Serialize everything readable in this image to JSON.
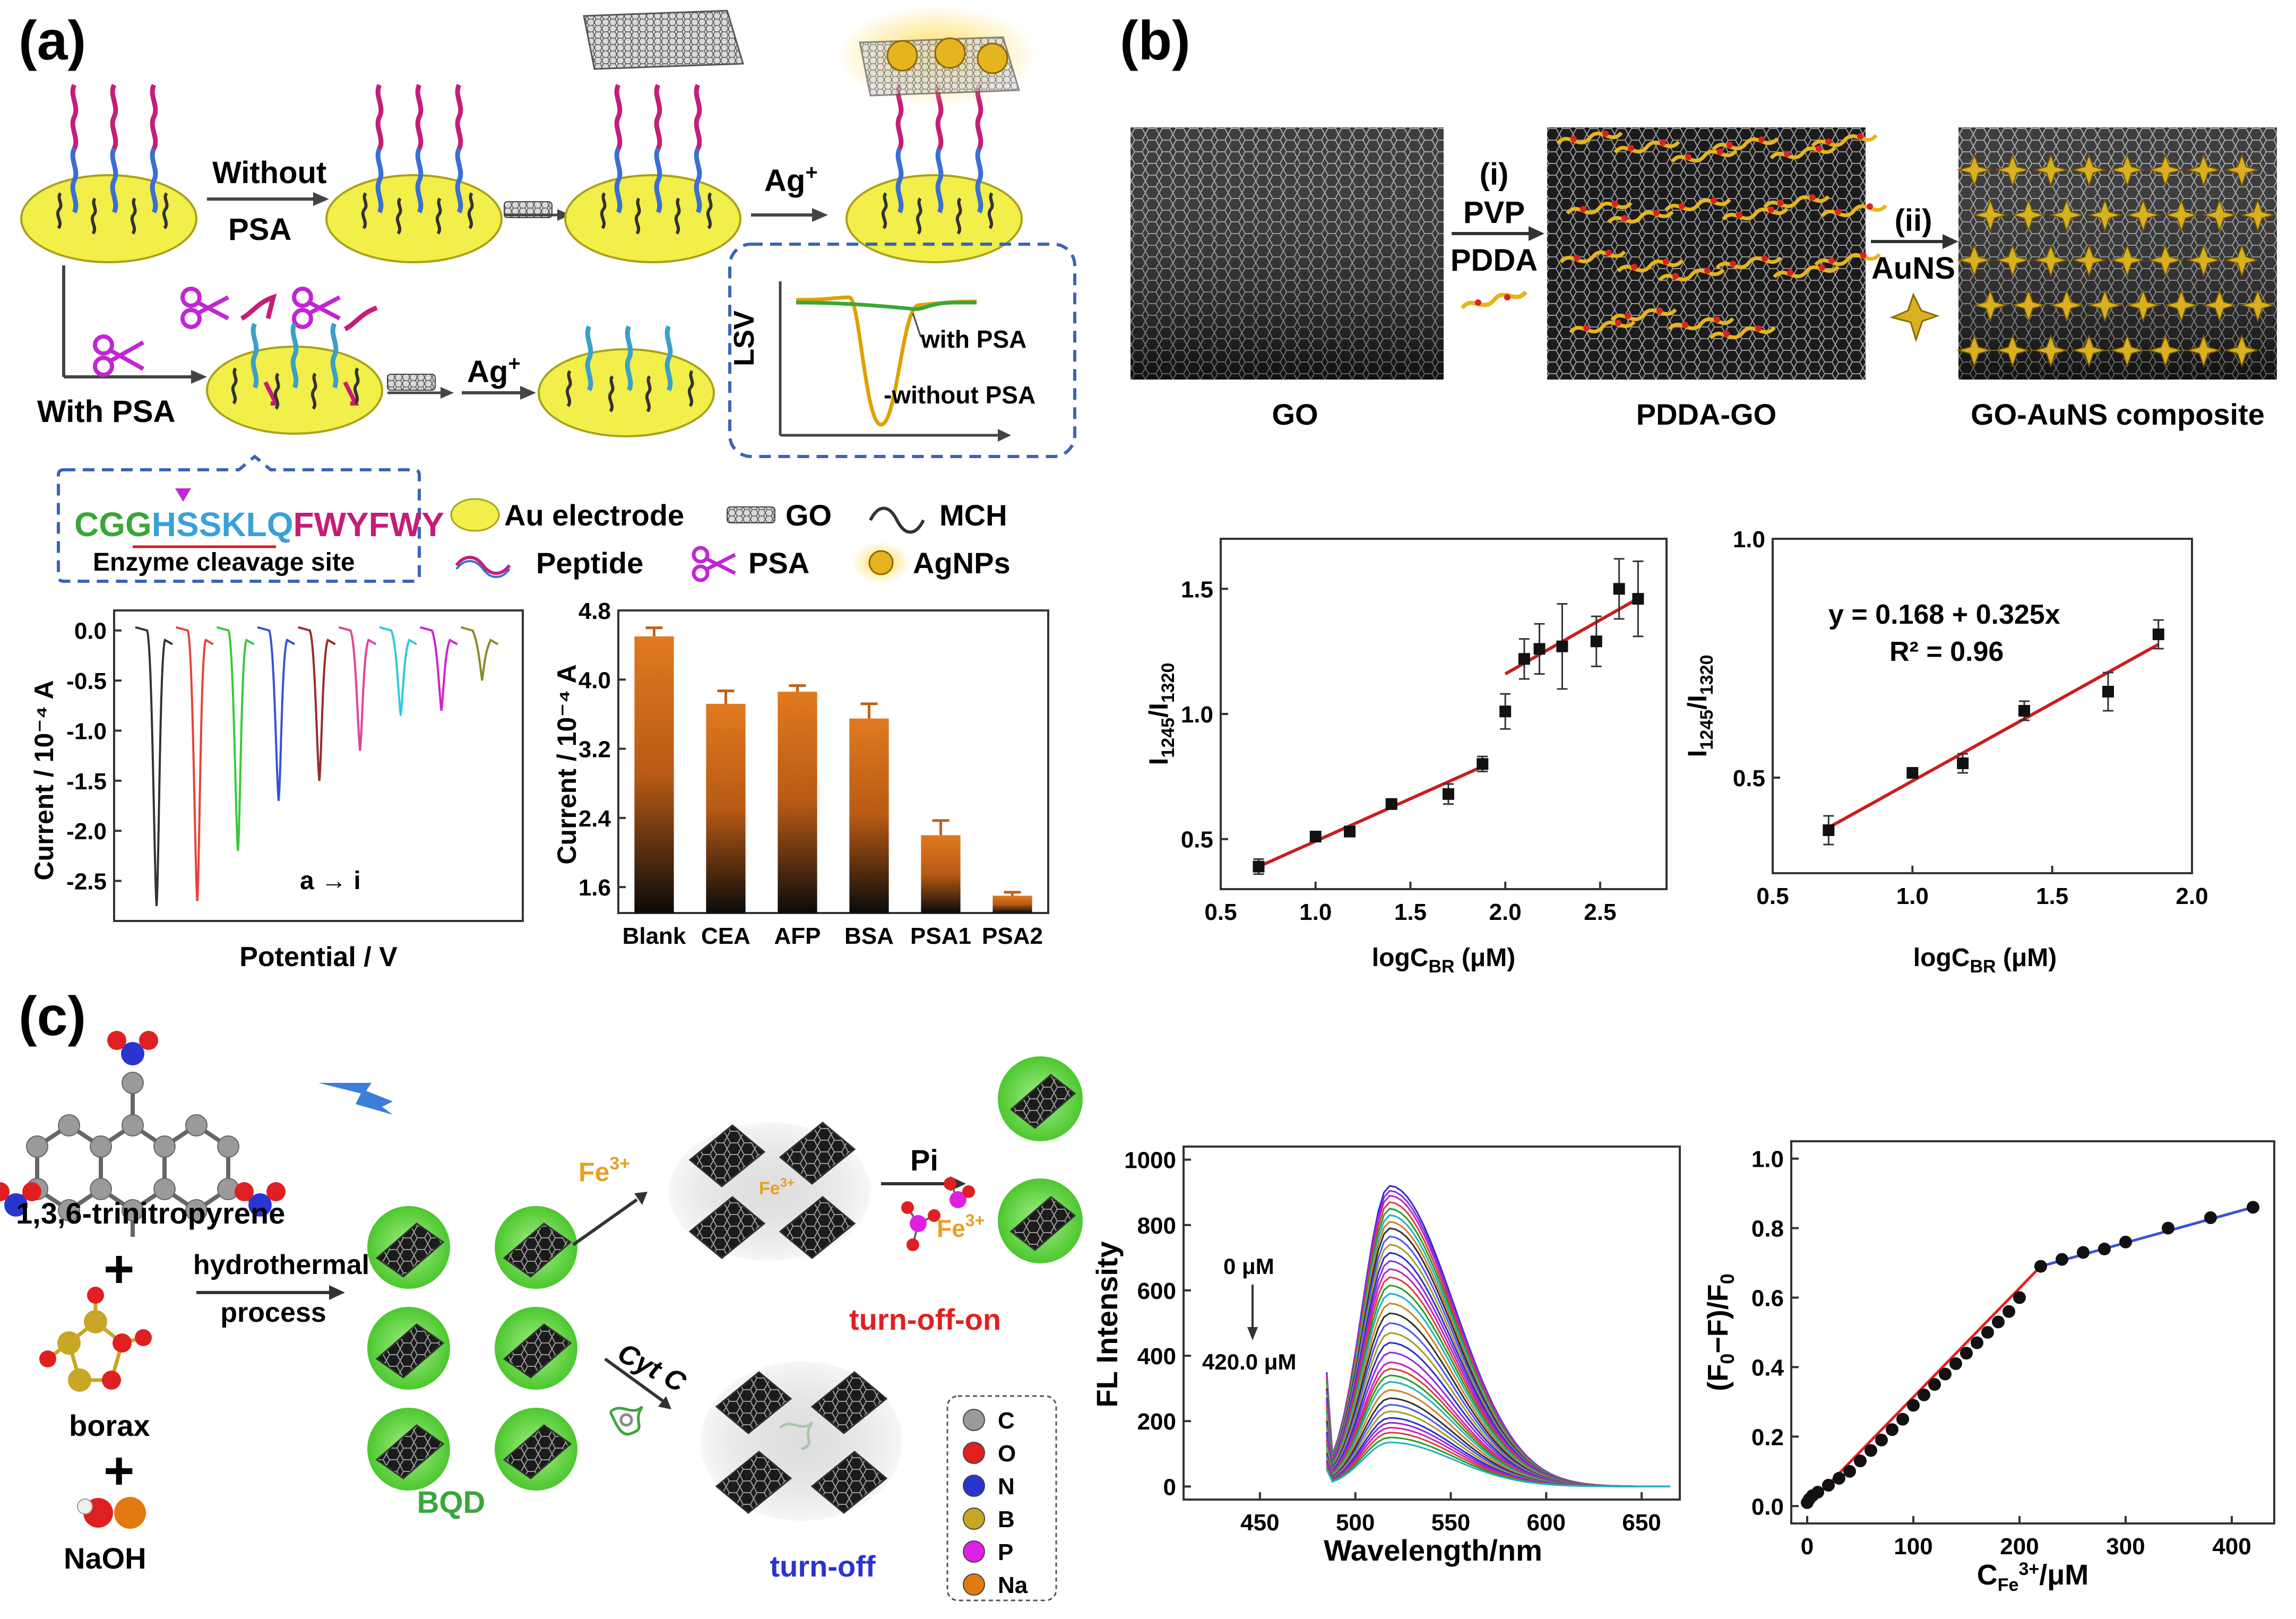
{
  "panel_a": {
    "label": "(a)",
    "without_psa": [
      "Without",
      "PSA"
    ],
    "with_psa": "With PSA",
    "ag_plus": "Ag",
    "ag_sup": "+",
    "lsv": {
      "ylabel": "LSV",
      "with": "with PSA",
      "without": "without PSA"
    },
    "sequence": {
      "part1": "CGG",
      "part2": "HSSKLQ",
      "part3": "FWYFWY",
      "caption": "Enzyme cleavage site"
    },
    "legend": {
      "au": "Au electrode",
      "go": "GO",
      "mch": "MCH",
      "peptide": "Peptide",
      "psa": "PSA",
      "agnps": "AgNPs"
    },
    "colors": {
      "gold": "#f2ee4a",
      "cleave": "#c026d3",
      "seq_green": "#3aa63a",
      "seq_blue": "#3ba0d8",
      "seq_magenta": "#c41e78",
      "dash": "#3a64b8"
    }
  },
  "panel_b": {
    "label": "(b)",
    "step_i": "(i)",
    "pvp": "PVP",
    "pdda": "PDDA",
    "step_ii": "(ii)",
    "auns": "AuNS",
    "cap_go": "GO",
    "cap_pdda": "PDDA-GO",
    "cap_comp": "GO-AuNS composite",
    "equation": "y = 0.168 + 0.325x",
    "r2": "R² = 0.96"
  },
  "panel_c": {
    "label": "(c)",
    "trinitropyrene": "1,3,6-trinitropyrene",
    "borax": "borax",
    "naoh": "NaOH",
    "plus": "+",
    "hydro1": "hydrothermal",
    "hydro2": "process",
    "bqd": "BQD",
    "fe": "Fe",
    "fe_sup": "3+",
    "pi": "Pi",
    "cytc": "Cyt C",
    "turn_off_on": "turn-off-on",
    "turn_off": "turn-off",
    "atoms": [
      {
        "sym": "C",
        "color": "#9a9a9a"
      },
      {
        "sym": "O",
        "color": "#e02020"
      },
      {
        "sym": "N",
        "color": "#2a34d0"
      },
      {
        "sym": "B",
        "color": "#c8a626"
      },
      {
        "sym": "P",
        "color": "#e020e0"
      },
      {
        "sym": "Na",
        "color": "#e07a10"
      }
    ],
    "fl_top": "0 μM",
    "fl_bottom": "420.0 μM"
  },
  "chart_data": [
    {
      "id": "cv_curves",
      "type": "line",
      "title": "",
      "xlabel": "Potential / V",
      "ylabel": "Current / 10⁻⁴ A",
      "yticks": [
        "0.0",
        "-0.5",
        "-1.0",
        "-1.5",
        "-2.0",
        "-2.5"
      ],
      "ylim": [
        -2.9,
        0.2
      ],
      "annotation": "a → i",
      "series": [
        {
          "name": "a",
          "color": "#333333",
          "peak": -2.75
        },
        {
          "name": "b",
          "color": "#e8413b",
          "peak": -2.7
        },
        {
          "name": "c",
          "color": "#39c83a",
          "peak": -2.2
        },
        {
          "name": "d",
          "color": "#3a4fd8",
          "peak": -1.7
        },
        {
          "name": "e",
          "color": "#9a2a2a",
          "peak": -1.5
        },
        {
          "name": "f",
          "color": "#e0439a",
          "peak": -1.2
        },
        {
          "name": "g",
          "color": "#32c8e0",
          "peak": -0.85
        },
        {
          "name": "h",
          "color": "#d020d0",
          "peak": -0.8
        },
        {
          "name": "i",
          "color": "#8a8a28",
          "peak": -0.5
        }
      ]
    },
    {
      "id": "selectivity_bar",
      "type": "bar",
      "title": "",
      "xlabel": "",
      "ylabel": "Current / 10⁻⁴ A",
      "categories": [
        "Blank",
        "CEA",
        "AFP",
        "BSA",
        "PSA1",
        "PSA2"
      ],
      "values": [
        4.5,
        3.72,
        3.86,
        3.55,
        2.2,
        1.5
      ],
      "errors": [
        0.1,
        0.15,
        0.07,
        0.17,
        0.17,
        0.04
      ],
      "yticks": [
        1.6,
        2.4,
        3.2,
        4.0,
        4.8
      ],
      "ylim": [
        1.3,
        4.8
      ]
    },
    {
      "id": "raman_full",
      "type": "scatter",
      "xlabel": "logC_BR (μM)",
      "ylabel": "I1245/I1320",
      "xticks": [
        0.5,
        1.0,
        1.5,
        2.0,
        2.5
      ],
      "yticks": [
        0.5,
        1.0,
        1.5
      ],
      "xlim": [
        0.5,
        2.85
      ],
      "ylim": [
        0.3,
        1.7
      ],
      "x": [
        0.7,
        1.0,
        1.18,
        1.4,
        1.7,
        1.88,
        2.0,
        2.1,
        2.18,
        2.3,
        2.48,
        2.6,
        2.7
      ],
      "y": [
        0.39,
        0.51,
        0.53,
        0.64,
        0.68,
        0.8,
        1.01,
        1.22,
        1.26,
        1.27,
        1.29,
        1.5,
        1.46
      ],
      "err": [
        0.03,
        0.01,
        0.02,
        0.02,
        0.04,
        0.03,
        0.07,
        0.08,
        0.1,
        0.17,
        0.1,
        0.12,
        0.15
      ],
      "fit_segments": [
        [
          0.7,
          0.39,
          1.88,
          0.79
        ],
        [
          2.0,
          1.16,
          2.72,
          1.47
        ]
      ]
    },
    {
      "id": "raman_linear",
      "type": "scatter",
      "xlabel": "logC_BR (μM)",
      "ylabel": "I1245/I1320",
      "xticks": [
        0.5,
        1.0,
        1.5,
        2.0
      ],
      "yticks": [
        0.5,
        1.0
      ],
      "xlim": [
        0.5,
        2.0
      ],
      "ylim": [
        0.3,
        1.0
      ],
      "x": [
        0.7,
        1.0,
        1.18,
        1.4,
        1.7,
        1.88
      ],
      "y": [
        0.39,
        0.51,
        0.53,
        0.64,
        0.68,
        0.8
      ],
      "err": [
        0.03,
        0.01,
        0.02,
        0.02,
        0.04,
        0.03
      ],
      "fit": {
        "intercept": 0.168,
        "slope": 0.325
      }
    },
    {
      "id": "fl_spectra",
      "type": "line",
      "xlabel": "Wavelength/nm",
      "ylabel": "FL Intensity",
      "xticks": [
        450,
        500,
        550,
        600,
        650
      ],
      "yticks": [
        0,
        200,
        400,
        600,
        800,
        1000
      ],
      "xlim": [
        410,
        670
      ],
      "ylim": [
        -40,
        1040
      ],
      "start_nm": 485,
      "peak_nm": 518,
      "peaks": [
        920,
        905,
        890,
        870,
        850,
        830,
        810,
        790,
        765,
        740,
        715,
        690,
        665,
        640,
        615,
        590,
        560,
        530,
        500,
        470,
        440,
        410,
        380,
        360,
        340,
        320,
        295,
        270,
        250,
        230,
        210,
        195,
        180,
        165,
        150,
        135
      ],
      "palette": [
        "#2a2ad0",
        "#8a2be2",
        "#c020c0",
        "#e03a3a",
        "#20a020",
        "#20b0c0",
        "#d08020",
        "#303030",
        "#5050ff",
        "#a0a020"
      ]
    },
    {
      "id": "fe_quench",
      "type": "scatter",
      "xlabel": "C_Fe3+/μM",
      "ylabel": "(F0−F)/F0",
      "xticks": [
        0,
        100,
        200,
        300,
        400
      ],
      "yticks": [
        0.0,
        0.2,
        0.4,
        0.6,
        0.8,
        1.0
      ],
      "xlim": [
        -15,
        440
      ],
      "ylim": [
        -0.05,
        1.05
      ],
      "x": [
        0,
        2,
        5,
        10,
        20,
        30,
        40,
        50,
        60,
        70,
        80,
        90,
        100,
        110,
        120,
        130,
        140,
        150,
        160,
        170,
        180,
        190,
        200,
        220,
        240,
        260,
        280,
        300,
        340,
        380,
        420
      ],
      "y": [
        0.01,
        0.02,
        0.03,
        0.04,
        0.06,
        0.08,
        0.1,
        0.13,
        0.16,
        0.19,
        0.22,
        0.25,
        0.29,
        0.32,
        0.35,
        0.38,
        0.41,
        0.44,
        0.47,
        0.5,
        0.53,
        0.56,
        0.6,
        0.69,
        0.71,
        0.73,
        0.74,
        0.76,
        0.8,
        0.83,
        0.86
      ],
      "fit_segments": [
        [
          0,
          0.0,
          220,
          0.69
        ],
        [
          220,
          0.69,
          420,
          0.86
        ]
      ]
    }
  ]
}
